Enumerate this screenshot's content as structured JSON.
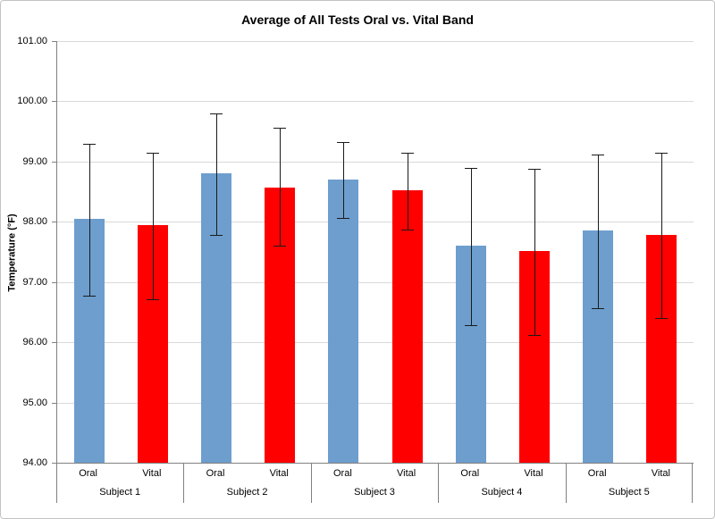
{
  "chart_data": {
    "type": "bar",
    "title": "Average of All Tests Oral vs. Vital Band",
    "xlabel": "",
    "ylabel": "Temperature (°F)",
    "ylim": [
      94,
      101
    ],
    "ytick_step": 1,
    "yticks": [
      "101.00",
      "100.00",
      "99.00",
      "98.00",
      "97.00",
      "96.00",
      "95.00",
      "94.00"
    ],
    "grid": true,
    "legend_position": "none",
    "groups": [
      "Subject 1",
      "Subject 2",
      "Subject 3",
      "Subject 4",
      "Subject 5"
    ],
    "bar_labels": [
      "Oral",
      "Vital"
    ],
    "series": [
      {
        "name": "Oral",
        "color": "#6d9ece",
        "values": [
          98.05,
          98.8,
          98.7,
          97.6,
          97.85
        ],
        "error_upper": [
          99.3,
          99.8,
          99.33,
          98.9,
          99.12
        ],
        "error_lower": [
          96.78,
          97.78,
          98.07,
          96.28,
          96.57
        ]
      },
      {
        "name": "Vital",
        "color": "#ff0000",
        "values": [
          97.95,
          98.57,
          98.52,
          97.52,
          97.78
        ],
        "error_upper": [
          99.15,
          99.56,
          99.15,
          98.88,
          99.15
        ],
        "error_lower": [
          96.72,
          97.6,
          97.87,
          96.12,
          96.4
        ]
      }
    ]
  }
}
